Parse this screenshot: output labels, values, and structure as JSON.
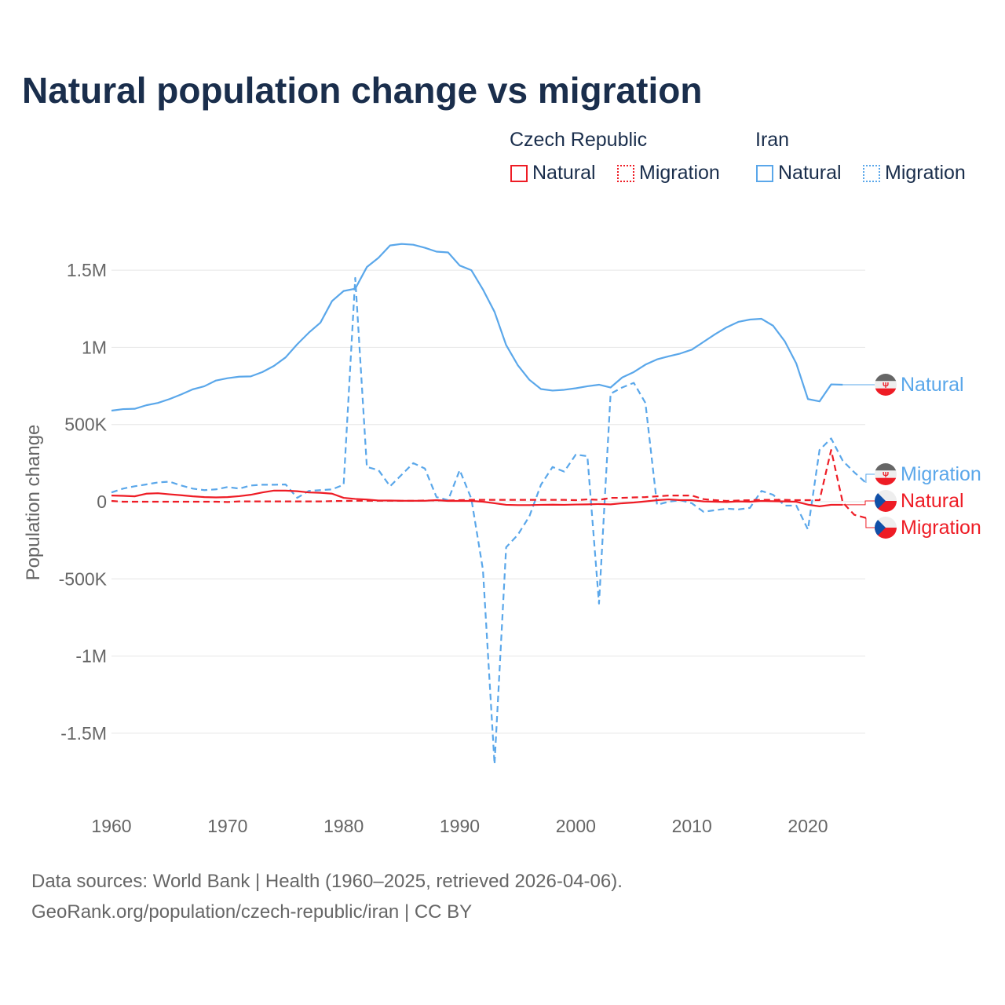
{
  "title": "Natural population change vs migration",
  "legend": {
    "groups": [
      {
        "name": "Czech Republic",
        "items": [
          {
            "label": "Natural",
            "style": "solid"
          },
          {
            "label": "Migration",
            "style": "dotted"
          }
        ],
        "color": "#ee1c25"
      },
      {
        "name": "Iran",
        "items": [
          {
            "label": "Natural",
            "style": "solid"
          },
          {
            "label": "Migration",
            "style": "dotted"
          }
        ],
        "color": "#5aa7ea"
      }
    ]
  },
  "footer": {
    "line1": "Data sources: World Bank | Health (1960–2025, retrieved 2026-04-06).",
    "line2": "GeoRank.org/population/czech-republic/iran | CC BY"
  },
  "chart_data": {
    "type": "line",
    "title": "Natural population change vs migration",
    "xlabel": "",
    "ylabel": "Population change",
    "xlim": [
      1960,
      2025
    ],
    "ylim": [
      -1750000,
      1750000
    ],
    "xticks": [
      1960,
      1970,
      1980,
      1990,
      2000,
      2010,
      2020
    ],
    "xtick_labels": [
      "1960",
      "1970",
      "1980",
      "1990",
      "2000",
      "2010",
      "2020"
    ],
    "yticks": [
      1500000,
      1000000,
      500000,
      0,
      -500000,
      -1000000,
      -1500000
    ],
    "ytick_labels": [
      "1.5M",
      "1M",
      "500K",
      "0",
      "-500K",
      "-1M",
      "-1.5M"
    ],
    "grid": true,
    "series": [
      {
        "name": "Iran Natural",
        "label": "Natural",
        "color": "#5aa7ea",
        "dash": false,
        "start": 1960,
        "values_k": [
          590,
          600,
          602,
          625,
          640,
          665,
          695,
          728,
          748,
          785,
          800,
          810,
          812,
          840,
          880,
          935,
          1020,
          1095,
          1160,
          1300,
          1365,
          1380,
          1520,
          1580,
          1660,
          1670,
          1665,
          1645,
          1620,
          1615,
          1530,
          1500,
          1375,
          1230,
          1015,
          885,
          790,
          730,
          720,
          725,
          735,
          748,
          758,
          740,
          805,
          840,
          888,
          922,
          942,
          960,
          985,
          1035,
          1085,
          1130,
          1165,
          1180,
          1185,
          1140,
          1040,
          895,
          665,
          650,
          760,
          758
        ]
      },
      {
        "name": "Iran Migration",
        "label": "Migration",
        "color": "#5aa7ea",
        "dash": true,
        "start": 1960,
        "values_k": [
          60,
          85,
          100,
          112,
          125,
          130,
          105,
          85,
          75,
          80,
          95,
          85,
          105,
          110,
          110,
          112,
          25,
          70,
          75,
          80,
          110,
          1450,
          225,
          205,
          100,
          175,
          250,
          215,
          30,
          10,
          205,
          20,
          -440,
          -1700,
          -295,
          -215,
          -95,
          110,
          225,
          195,
          305,
          295,
          -660,
          700,
          740,
          770,
          640,
          -20,
          0,
          10,
          -10,
          -65,
          -55,
          -45,
          -50,
          -40,
          70,
          45,
          -25,
          -25,
          -180,
          335,
          410,
          265,
          190,
          122
        ]
      },
      {
        "name": "Czech Republic Natural",
        "label": "Natural",
        "color": "#ee1c25",
        "dash": false,
        "start": 1960,
        "values_k": [
          40,
          38,
          35,
          52,
          55,
          48,
          42,
          35,
          30,
          28,
          30,
          36,
          45,
          60,
          72,
          72,
          68,
          60,
          58,
          52,
          25,
          18,
          14,
          8,
          8,
          6,
          6,
          6,
          10,
          5,
          5,
          5,
          0,
          -10,
          -20,
          -22,
          -22,
          -20,
          -19,
          -20,
          -18,
          -17,
          -15,
          -17,
          -10,
          -5,
          2,
          10,
          15,
          10,
          10,
          2,
          0,
          -2,
          2,
          0,
          5,
          3,
          2,
          0,
          -19,
          -30,
          -20,
          -20
        ]
      },
      {
        "name": "Czech Republic Migration",
        "label": "Migration",
        "color": "#ee1c25",
        "dash": true,
        "start": 1960,
        "values_k": [
          5,
          0,
          0,
          0,
          0,
          0,
          0,
          0,
          0,
          0,
          -2,
          2,
          2,
          2,
          2,
          2,
          2,
          2,
          2,
          4,
          5,
          6,
          6,
          6,
          6,
          6,
          6,
          8,
          8,
          8,
          10,
          12,
          12,
          12,
          12,
          12,
          12,
          12,
          12,
          12,
          10,
          15,
          12,
          25,
          25,
          28,
          30,
          35,
          40,
          40,
          40,
          17,
          10,
          5,
          8,
          10,
          12,
          12,
          12,
          10,
          10,
          10,
          335,
          -5,
          -85,
          -105
        ]
      }
    ]
  }
}
